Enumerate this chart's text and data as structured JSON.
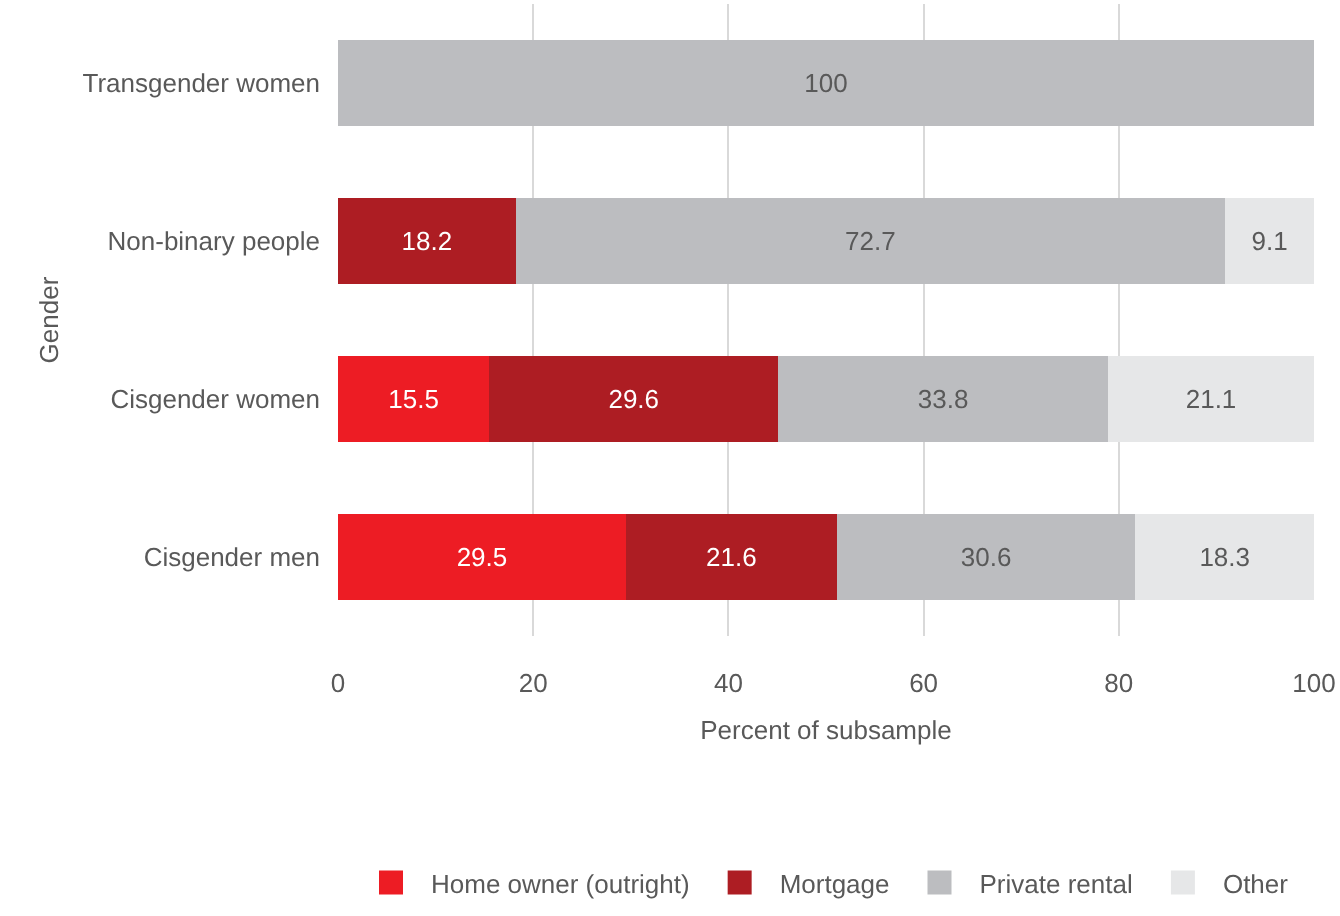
{
  "chart_data": {
    "type": "bar",
    "orientation": "horizontal",
    "stacked": true,
    "xlabel": "Percent of subsample",
    "ylabel": "Gender",
    "categories": [
      "Transgender women",
      "Non-binary people",
      "Cisgender women",
      "Cisgender men"
    ],
    "series": [
      {
        "name": "Home owner (outright)",
        "color": "#ed1c24",
        "values": [
          0,
          0,
          15.5,
          29.5
        ],
        "value_labels": [
          null,
          null,
          "15.5",
          "29.5"
        ]
      },
      {
        "name": "Mortgage",
        "color": "#ad1d23",
        "values": [
          0,
          18.2,
          29.6,
          21.6
        ],
        "value_labels": [
          null,
          "18.2",
          "29.6",
          "21.6"
        ]
      },
      {
        "name": "Private rental",
        "color": "#bcbdc0",
        "values": [
          100,
          72.7,
          33.8,
          30.6
        ],
        "value_labels": [
          "100",
          "72.7",
          "33.8",
          "30.6"
        ]
      },
      {
        "name": "Other",
        "color": "#e6e7e8",
        "values": [
          0,
          9.1,
          21.1,
          18.3
        ],
        "value_labels": [
          null,
          "9.1",
          "21.1",
          "18.3"
        ]
      }
    ],
    "xlim": [
      0,
      100
    ],
    "xticks": [
      0,
      20,
      40,
      60,
      80,
      100
    ],
    "grid": "x",
    "legend": "bottom"
  }
}
